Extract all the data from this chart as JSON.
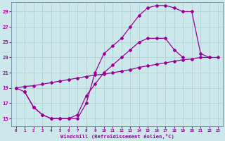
{
  "bg_color": "#cce8ea",
  "line_color": "#990099",
  "grid_color": "#aacccc",
  "xlabel": "Windchill (Refroidissement éolien,°C)",
  "yticks": [
    15,
    17,
    19,
    21,
    23,
    25,
    27,
    29
  ],
  "xticks": [
    0,
    1,
    2,
    3,
    4,
    5,
    6,
    7,
    8,
    9,
    10,
    11,
    12,
    13,
    14,
    15,
    16,
    17,
    18,
    19,
    20,
    21,
    22,
    23
  ],
  "xlim": [
    -0.5,
    23.5
  ],
  "ylim": [
    14.0,
    30.2
  ],
  "series": [
    {
      "x": [
        0,
        1,
        2,
        3,
        4,
        5,
        6,
        7,
        8,
        9,
        10,
        11,
        12,
        13,
        14,
        15,
        16,
        17,
        18,
        19,
        20,
        21,
        22
      ],
      "y": [
        19.0,
        18.5,
        16.5,
        15.5,
        15.0,
        15.0,
        15.0,
        15.0,
        17.0,
        21.0,
        23.5,
        24.5,
        25.5,
        27.0,
        28.5,
        29.5,
        29.8,
        29.8,
        29.5,
        29.0,
        29.0,
        23.5,
        23.0
      ]
    },
    {
      "x": [
        1,
        2,
        3,
        4,
        5,
        6,
        7,
        8,
        9,
        10,
        11,
        12,
        13,
        14,
        15,
        16,
        17,
        18,
        19
      ],
      "y": [
        18.5,
        16.5,
        15.5,
        15.0,
        15.0,
        15.0,
        15.5,
        18.0,
        19.5,
        21.0,
        22.0,
        23.0,
        24.0,
        25.0,
        25.5,
        25.5,
        25.5,
        24.0,
        23.0
      ]
    },
    {
      "x": [
        0,
        1,
        2,
        3,
        4,
        5,
        6,
        7,
        8,
        9,
        10,
        11,
        12,
        13,
        14,
        15,
        16,
        17,
        18,
        19,
        20,
        21,
        22,
        23
      ],
      "y": [
        19.0,
        19.2,
        19.3,
        19.5,
        19.7,
        19.9,
        20.1,
        20.3,
        20.5,
        20.7,
        20.8,
        21.0,
        21.2,
        21.4,
        21.7,
        21.9,
        22.1,
        22.3,
        22.5,
        22.7,
        22.8,
        23.0,
        23.0,
        23.0
      ]
    }
  ]
}
